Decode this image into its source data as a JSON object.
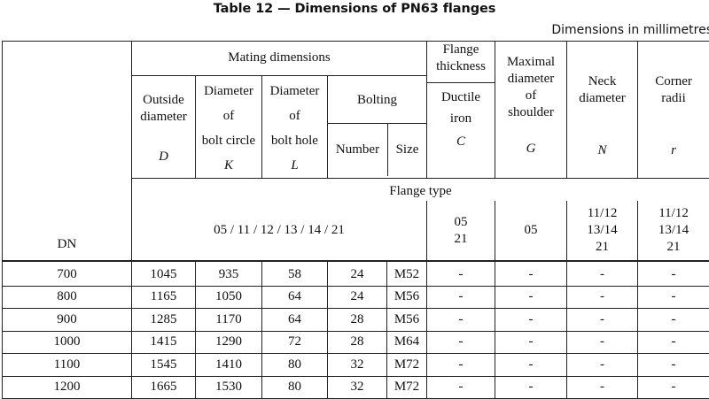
{
  "title": "Table 12 — Dimensions of PN63 flanges",
  "dimensions_note": "Dimensions in millimetres",
  "headers": {
    "mating_dimensions": "Mating dimensions",
    "outside_diameter": "Outside diameter",
    "outside_diameter_symbol": "D",
    "bolt_circle_l1": "Diameter",
    "bolt_circle_l2": "of",
    "bolt_circle_l3": "bolt circle",
    "bolt_circle_symbol": "K",
    "bolt_hole_l1": "Diameter",
    "bolt_hole_l2": "of",
    "bolt_hole_l3": "bolt hole",
    "bolt_hole_symbol": "L",
    "bolting": "Bolting",
    "number": "Number",
    "size": "Size",
    "flange_thickness": "Flange thickness",
    "ductile_iron_l1": "Ductile",
    "ductile_iron_l2": "iron",
    "flange_thickness_symbol": "C",
    "shoulder_l1": "Maximal",
    "shoulder_l2": "diameter",
    "shoulder_l3": "of",
    "shoulder_l4": "shoulder",
    "shoulder_symbol": "G",
    "neck_l1": "Neck",
    "neck_l2": "diameter",
    "neck_symbol": "N",
    "corner_l1": "Corner",
    "corner_l2": "radii",
    "corner_symbol": "r",
    "flange_type": "Flange type",
    "dn": "DN",
    "type_mating": "05 / 11 / 12 / 13 / 14 / 21",
    "type_thickness_l1": "05",
    "type_thickness_l2": "21",
    "type_shoulder": "05",
    "type_neck_l1": "11/12",
    "type_neck_l2": "13/14",
    "type_neck_l3": "21",
    "type_corner_l1": "11/12",
    "type_corner_l2": "13/14",
    "type_corner_l3": "21"
  },
  "rows": [
    {
      "dn": "700",
      "D": "1045",
      "K": "935",
      "L": "58",
      "number": "24",
      "size": "M52",
      "C": "-",
      "G": "-",
      "N": "-",
      "r": "-"
    },
    {
      "dn": "800",
      "D": "1165",
      "K": "1050",
      "L": "64",
      "number": "24",
      "size": "M56",
      "C": "-",
      "G": "-",
      "N": "-",
      "r": "-"
    },
    {
      "dn": "900",
      "D": "1285",
      "K": "1170",
      "L": "64",
      "number": "28",
      "size": "M56",
      "C": "-",
      "G": "-",
      "N": "-",
      "r": "-"
    },
    {
      "dn": "1000",
      "D": "1415",
      "K": "1290",
      "L": "72",
      "number": "28",
      "size": "M64",
      "C": "-",
      "G": "-",
      "N": "-",
      "r": "-"
    },
    {
      "dn": "1100",
      "D": "1545",
      "K": "1410",
      "L": "80",
      "number": "32",
      "size": "M72",
      "C": "-",
      "G": "-",
      "N": "-",
      "r": "-"
    },
    {
      "dn": "1200",
      "D": "1665",
      "K": "1530",
      "L": "80",
      "number": "32",
      "size": "M72",
      "C": "-",
      "G": "-",
      "N": "-",
      "r": "-"
    }
  ]
}
